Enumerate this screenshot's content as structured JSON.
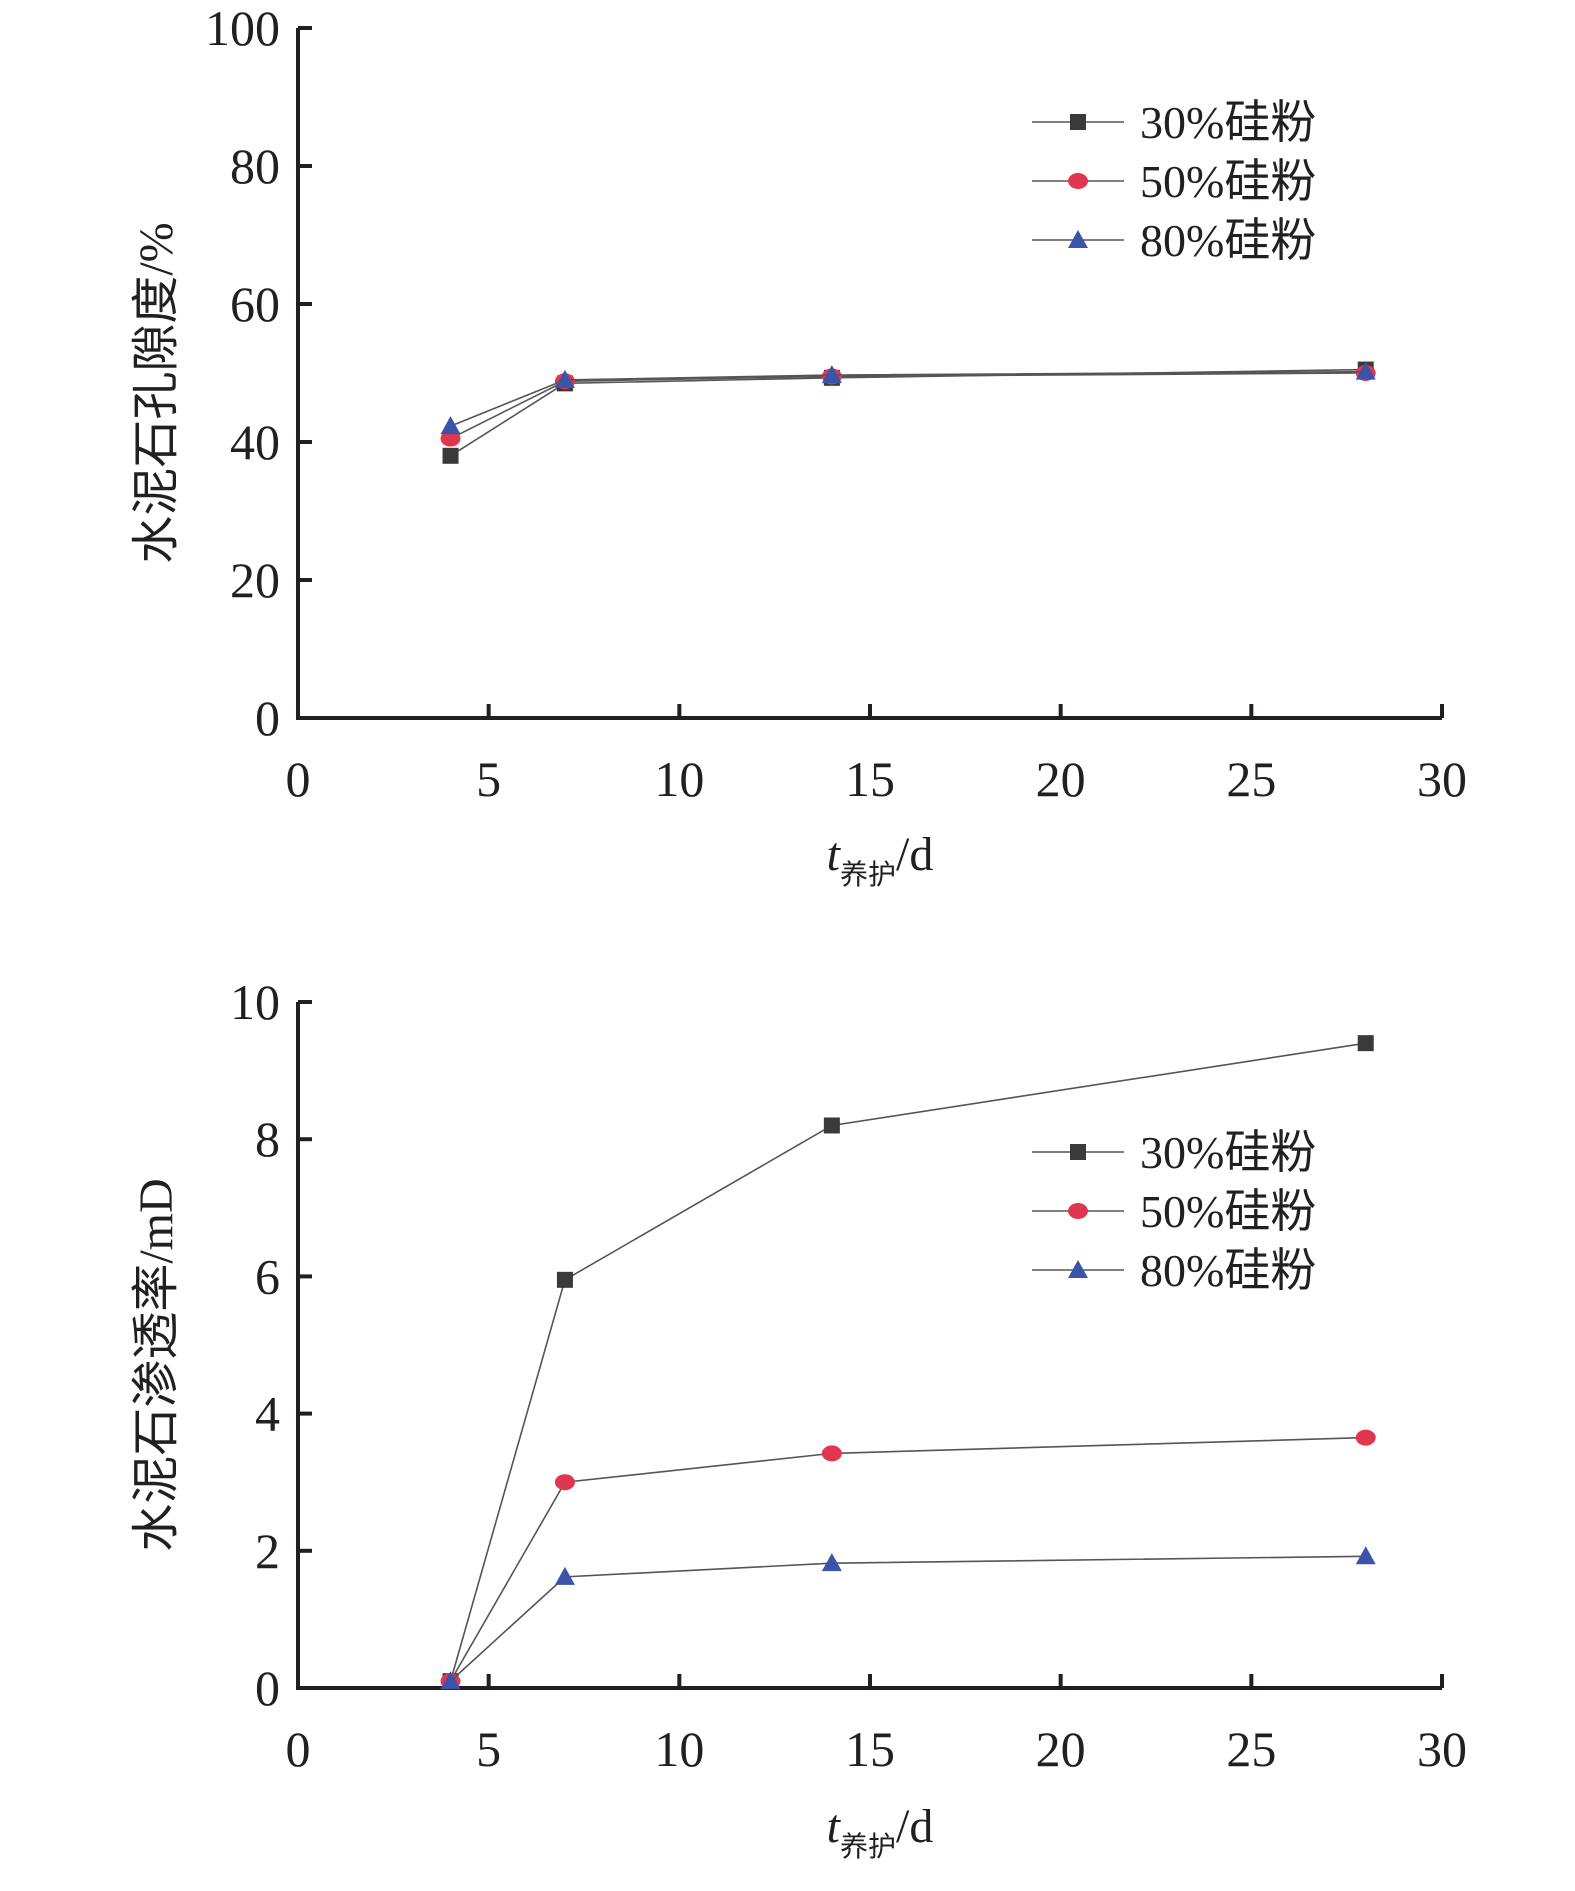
{
  "chart_data": [
    {
      "type": "line",
      "ylabel": "水泥石孔隙度/%",
      "xlabel": {
        "var": "t",
        "sub": "养护",
        "unit": "/d"
      },
      "xlim": [
        0,
        30
      ],
      "ylim": [
        0,
        100
      ],
      "xticks": [
        0,
        5,
        10,
        15,
        20,
        25,
        30
      ],
      "yticks": [
        0,
        20,
        40,
        60,
        80,
        100
      ],
      "grid": false,
      "legend_position": "top-right",
      "x": [
        4,
        7,
        14,
        28
      ],
      "series": [
        {
          "name": "30%硅粉",
          "values": [
            38.0,
            48.5,
            49.3,
            50.5
          ],
          "color": "#3a3a3a",
          "marker": "square"
        },
        {
          "name": "50%硅粉",
          "values": [
            40.5,
            48.8,
            49.5,
            50.0
          ],
          "color": "#e0364f",
          "marker": "circle"
        },
        {
          "name": "80%硅粉",
          "values": [
            42.3,
            49.0,
            49.7,
            50.2
          ],
          "color": "#3a55a8",
          "marker": "triangle"
        }
      ]
    },
    {
      "type": "line",
      "ylabel": "水泥石渗透率/mD",
      "xlabel": {
        "var": "t",
        "sub": "养护",
        "unit": "/d"
      },
      "xlim": [
        0,
        30
      ],
      "ylim": [
        0,
        10
      ],
      "xticks": [
        0,
        5,
        10,
        15,
        20,
        25,
        30
      ],
      "yticks": [
        0,
        2,
        4,
        6,
        8,
        10
      ],
      "grid": false,
      "legend_position": "top-right",
      "x": [
        4,
        7,
        14,
        28
      ],
      "series": [
        {
          "name": "30%硅粉",
          "values": [
            0.1,
            5.95,
            8.2,
            9.4
          ],
          "color": "#3a3a3a",
          "marker": "square"
        },
        {
          "name": "50%硅粉",
          "values": [
            0.1,
            3.0,
            3.42,
            3.65
          ],
          "color": "#e0364f",
          "marker": "circle"
        },
        {
          "name": "80%硅粉",
          "values": [
            0.1,
            1.62,
            1.82,
            1.92
          ],
          "color": "#3a55a8",
          "marker": "triangle"
        }
      ]
    }
  ]
}
